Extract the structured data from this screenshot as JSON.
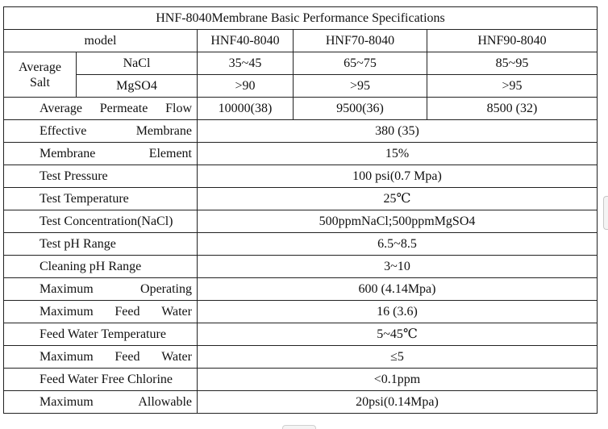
{
  "title": "HNF-8040Membrane Basic Performance Specifications",
  "header": {
    "label": "model",
    "models": [
      "HNF40-8040",
      "HNF70-8040",
      "HNF90-8040"
    ]
  },
  "salt": {
    "label_line1": "Average",
    "label_line2": "Salt",
    "rows": [
      {
        "name": "NaCl",
        "values": [
          "35~45",
          "65~75",
          "85~95"
        ]
      },
      {
        "name": "MgSO4",
        "values": [
          ">90",
          ">95",
          ">95"
        ]
      }
    ]
  },
  "flow": {
    "words": [
      "Average",
      "Permeate",
      "Flow"
    ],
    "values": [
      "10000(38)",
      "9500(36)",
      "8500 (32)"
    ]
  },
  "specs": [
    {
      "words": [
        "Effective",
        "Membrane"
      ],
      "value": "380 (35)"
    },
    {
      "words": [
        "Membrane",
        "Element"
      ],
      "value": "15%"
    },
    {
      "words": [
        "Test Pressure"
      ],
      "value": "100 psi(0.7 Mpa)"
    },
    {
      "words": [
        "Test Temperature"
      ],
      "value": "25℃"
    },
    {
      "words": [
        "Test Concentration(NaCl)"
      ],
      "value": "500ppmNaCl;500ppmMgSO4"
    },
    {
      "words": [
        "Test pH Range"
      ],
      "value": "6.5~8.5"
    },
    {
      "words": [
        "Cleaning pH Range"
      ],
      "value": "3~10"
    },
    {
      "words": [
        "Maximum",
        "Operating"
      ],
      "value": "600 (4.14Mpa)"
    },
    {
      "words": [
        "Maximum",
        "Feed",
        "Water"
      ],
      "value": "16 (3.6)"
    },
    {
      "words": [
        "Feed Water Temperature"
      ],
      "value": "5~45℃"
    },
    {
      "words": [
        "Maximum",
        "Feed",
        "Water"
      ],
      "value": "≤5"
    },
    {
      "words": [
        "Feed Water Free Chlorine"
      ],
      "value": "<0.1ppm"
    },
    {
      "words": [
        "Maximum",
        "Allowable"
      ],
      "value": "20psi(0.14Mpa)"
    }
  ]
}
